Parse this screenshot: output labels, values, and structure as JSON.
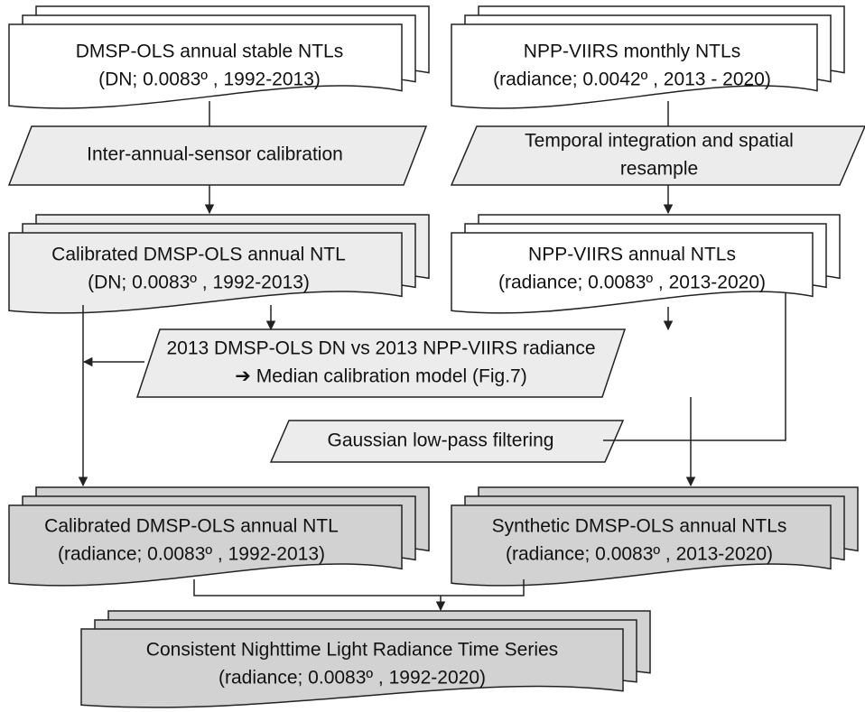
{
  "nodes": [
    {
      "lines": [
        "DMSP-OLS annual stable NTLs",
        "(DN; 0.0083º , 1992-2013)"
      ]
    },
    {
      "lines": [
        "NPP-VIIRS monthly NTLs",
        "(radiance; 0.0042º , 2013 - 2020)"
      ]
    },
    {
      "lines": [
        "Inter-annual-sensor calibration"
      ]
    },
    {
      "lines": [
        "Temporal integration and spatial",
        "resample"
      ]
    },
    {
      "lines": [
        "Calibrated DMSP-OLS annual NTL",
        "(DN; 0.0083º , 1992-2013)"
      ]
    },
    {
      "lines": [
        "NPP-VIIRS annual NTLs",
        "(radiance; 0.0083º , 2013-2020)"
      ]
    },
    {
      "lines": [
        "2013 DMSP-OLS DN vs 2013 NPP-VIIRS radiance",
        "➔  Median calibration model (Fig.7)"
      ]
    },
    {
      "lines": [
        "Gaussian low-pass filtering"
      ]
    },
    {
      "lines": [
        "Calibrated DMSP-OLS annual NTL",
        "(radiance; 0.0083º , 1992-2013)"
      ]
    },
    {
      "lines": [
        "Synthetic DMSP-OLS annual NTLs",
        "(radiance; 0.0083º , 2013-2020)"
      ]
    },
    {
      "lines": [
        "Consistent Nighttime Light Radiance Time Series",
        "(radiance; 0.0083º , 1992-2020)"
      ]
    }
  ]
}
